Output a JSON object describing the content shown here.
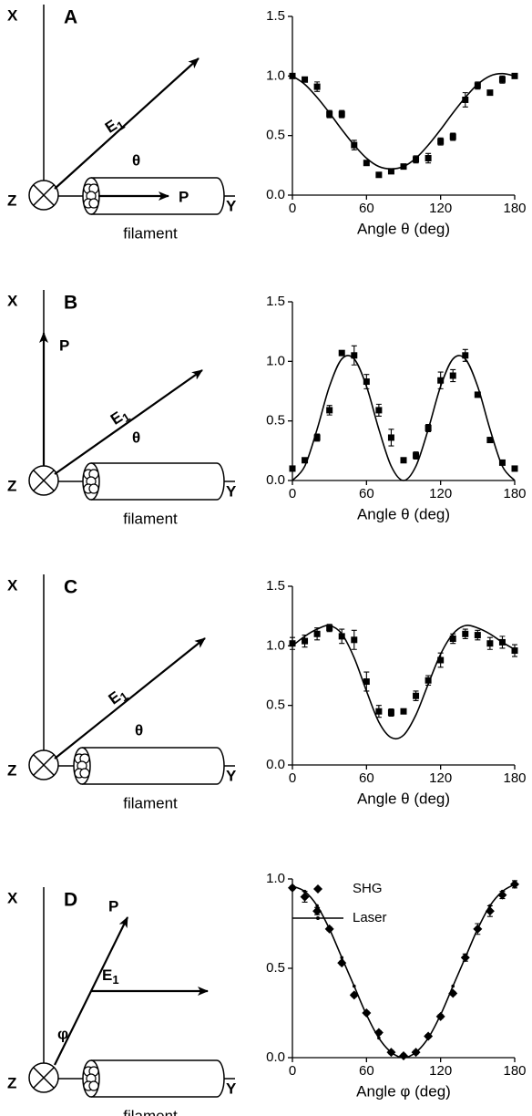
{
  "diagrams": [
    {
      "letter": "A",
      "x_axis": "X",
      "y_axis": "Y",
      "z_axis": "Z",
      "field": "E",
      "field_sub": "1",
      "angle": "θ",
      "polarization": "P",
      "object": "filament"
    },
    {
      "letter": "B",
      "x_axis": "X",
      "y_axis": "Y",
      "z_axis": "Z",
      "field": "E",
      "field_sub": "1",
      "angle": "θ",
      "polarization": "P",
      "object": "filament"
    },
    {
      "letter": "C",
      "x_axis": "X",
      "y_axis": "Y",
      "z_axis": "Z",
      "field": "E",
      "field_sub": "1",
      "angle": "θ",
      "object": "filament"
    },
    {
      "letter": "D",
      "x_axis": "X",
      "y_axis": "Y",
      "z_axis": "Z",
      "field": "E",
      "field_sub": "1",
      "angle": "φ",
      "polarization": "P",
      "object": "filament"
    }
  ],
  "chart_data": [
    {
      "type": "scatter",
      "x_label": "Angle θ (deg)",
      "x": [
        0,
        10,
        20,
        30,
        40,
        50,
        60,
        70,
        80,
        90,
        100,
        110,
        120,
        130,
        140,
        150,
        160,
        170,
        180
      ],
      "xlim": [
        0,
        180
      ],
      "xticks": [
        0,
        60,
        120,
        180
      ],
      "ylim": [
        0,
        1.5
      ],
      "yticks": [
        {
          "value": 0,
          "label": "0.0"
        },
        0.5,
        {
          "value": 1,
          "label": "1.0"
        },
        1.5
      ],
      "series": [
        {
          "marker": "square",
          "color": "#000000",
          "values": [
            1.0,
            0.97,
            0.91,
            0.68,
            0.68,
            0.42,
            0.27,
            0.17,
            0.2,
            0.24,
            0.3,
            0.31,
            0.45,
            0.49,
            0.8,
            0.92,
            0.86,
            0.97,
            1.0
          ],
          "errors": [
            0.02,
            0.02,
            0.04,
            0.03,
            0.03,
            0.04,
            0.02,
            0.02,
            0.02,
            0.02,
            0.03,
            0.04,
            0.03,
            0.03,
            0.06,
            0.03,
            0.02,
            0.03,
            0.02
          ]
        },
        {
          "line": true,
          "color": "#000000",
          "values": [
            1.0,
            0.93,
            0.82,
            0.69,
            0.55,
            0.42,
            0.31,
            0.24,
            0.22,
            0.24,
            0.31,
            0.42,
            0.55,
            0.69,
            0.82,
            0.93,
            1.0,
            1.02,
            1.0
          ]
        }
      ]
    },
    {
      "type": "scatter",
      "x_label": "Angle θ (deg)",
      "x": [
        0,
        10,
        20,
        30,
        40,
        50,
        60,
        70,
        80,
        90,
        100,
        110,
        120,
        130,
        140,
        150,
        160,
        170,
        180
      ],
      "xlim": [
        0,
        180
      ],
      "xticks": [
        0,
        60,
        120,
        180
      ],
      "ylim": [
        0,
        1.5
      ],
      "yticks": [
        {
          "value": 0,
          "label": "0.0"
        },
        0.5,
        {
          "value": 1,
          "label": "1.0"
        },
        1.5
      ],
      "series": [
        {
          "marker": "square",
          "color": "#000000",
          "values": [
            0.1,
            0.17,
            0.36,
            0.59,
            1.07,
            1.05,
            0.83,
            0.59,
            0.36,
            0.17,
            0.21,
            0.44,
            0.84,
            0.88,
            1.05,
            0.72,
            0.34,
            0.15,
            0.1
          ],
          "errors": [
            0.02,
            0.02,
            0.03,
            0.04,
            0.02,
            0.08,
            0.06,
            0.05,
            0.07,
            0.02,
            0.03,
            0.03,
            0.07,
            0.05,
            0.05,
            0.02,
            0.02,
            0.02,
            0.02
          ]
        },
        {
          "line": true,
          "color": "#000000",
          "values": [
            0,
            0.12,
            0.43,
            0.79,
            1.02,
            1.02,
            0.79,
            0.43,
            0.12,
            0,
            0.12,
            0.43,
            0.79,
            1.02,
            1.02,
            0.79,
            0.43,
            0.12,
            0
          ]
        }
      ]
    },
    {
      "type": "scatter",
      "x_label": "Angle θ (deg)",
      "x": [
        0,
        10,
        20,
        30,
        40,
        50,
        60,
        70,
        80,
        90,
        100,
        110,
        120,
        130,
        140,
        150,
        160,
        170,
        180
      ],
      "xlim": [
        0,
        180
      ],
      "xticks": [
        0,
        60,
        120,
        180
      ],
      "ylim": [
        0,
        1.5
      ],
      "yticks": [
        {
          "value": 0,
          "label": "0.0"
        },
        0.5,
        {
          "value": 1,
          "label": "1.0"
        },
        1.5
      ],
      "series": [
        {
          "marker": "square",
          "color": "#000000",
          "values": [
            1.02,
            1.04,
            1.1,
            1.15,
            1.08,
            1.05,
            0.7,
            0.45,
            0.44,
            0.45,
            0.58,
            0.71,
            0.88,
            1.06,
            1.1,
            1.09,
            1.02,
            1.03,
            0.96
          ],
          "errors": [
            0.05,
            0.05,
            0.05,
            0.03,
            0.06,
            0.08,
            0.08,
            0.05,
            0.03,
            0.02,
            0.04,
            0.04,
            0.06,
            0.04,
            0.04,
            0.04,
            0.05,
            0.05,
            0.05
          ]
        },
        {
          "line": true,
          "color": "#000000",
          "values": [
            1.0,
            1.08,
            1.14,
            1.17,
            1.1,
            0.9,
            0.62,
            0.36,
            0.23,
            0.25,
            0.42,
            0.68,
            0.93,
            1.1,
            1.17,
            1.15,
            1.1,
            1.03,
            0.97
          ]
        }
      ]
    },
    {
      "type": "scatter",
      "x_label": "Angle φ (deg)",
      "legend": "top",
      "x": [
        0,
        10,
        20,
        30,
        40,
        50,
        60,
        70,
        80,
        90,
        100,
        110,
        120,
        130,
        140,
        150,
        160,
        170,
        180
      ],
      "xlim": [
        0,
        180
      ],
      "xticks": [
        0,
        60,
        120,
        180
      ],
      "ylim": [
        0,
        1
      ],
      "yticks": [
        {
          "value": 0,
          "label": "0.0"
        },
        0.5,
        {
          "value": 1,
          "label": "1.0"
        }
      ],
      "series": [
        {
          "name": "SHG",
          "marker": "diamond",
          "color": "#000000",
          "values": [
            0.95,
            0.9,
            0.82,
            0.72,
            0.53,
            0.35,
            0.25,
            0.14,
            0.03,
            0.01,
            0.03,
            0.12,
            0.23,
            0.36,
            0.56,
            0.72,
            0.82,
            0.91,
            0.97
          ],
          "errors": [
            0.01,
            0.03,
            0.02,
            0.01,
            0.01,
            0.01,
            0.01,
            0.01,
            0.01,
            0.01,
            0.01,
            0.01,
            0.01,
            0.01,
            0.02,
            0.03,
            0.03,
            0.02,
            0.02
          ]
        },
        {
          "name": "Laser",
          "line": true,
          "marker": "dot",
          "color": "#000000",
          "values": [
            0.96,
            0.93,
            0.85,
            0.72,
            0.56,
            0.4,
            0.24,
            0.11,
            0.03,
            0.0,
            0.03,
            0.11,
            0.24,
            0.4,
            0.56,
            0.72,
            0.85,
            0.93,
            0.97
          ]
        }
      ]
    }
  ]
}
